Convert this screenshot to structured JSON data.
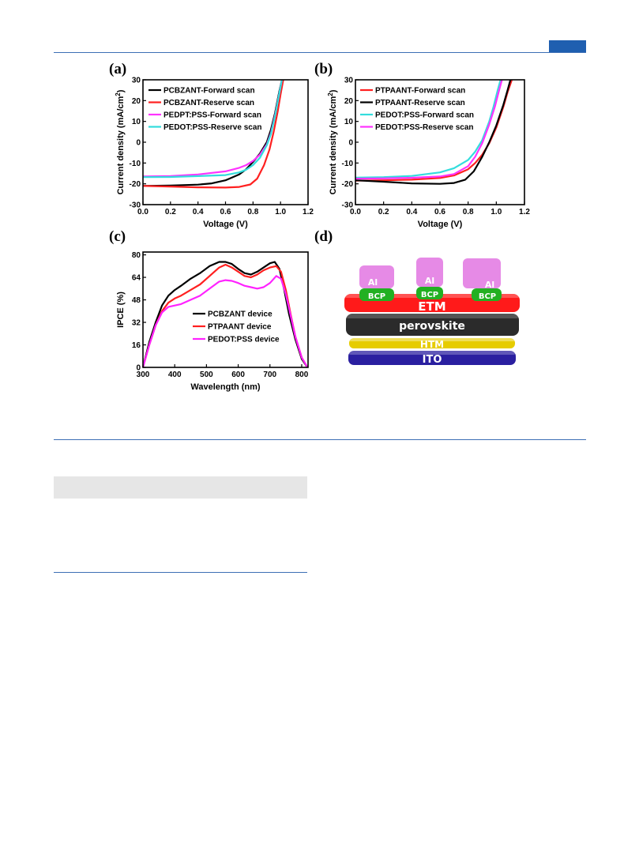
{
  "panel_labels": [
    "(a)",
    "(b)",
    "(c)",
    "(d)"
  ],
  "chart_data": [
    {
      "panel": "(a)",
      "type": "line",
      "xlabel": "Voltage (V)",
      "ylabel": "Current density (mA/cm",
      "ylabel_sup": "2",
      "ylabel_end": ")",
      "xlim": [
        0.0,
        1.2
      ],
      "ylim": [
        -30,
        30
      ],
      "xticks": [
        "0.0",
        "0.2",
        "0.4",
        "0.6",
        "0.8",
        "1.0",
        "1.2"
      ],
      "yticks": [
        "-30",
        "-20",
        "-10",
        "0",
        "10",
        "20",
        "30"
      ],
      "series": [
        {
          "name": "PCBZANT-Forward scan",
          "color": "#000000",
          "x": [
            0.0,
            0.2,
            0.4,
            0.5,
            0.6,
            0.7,
            0.75,
            0.8,
            0.85,
            0.9,
            0.93,
            0.96,
            0.99,
            1.01
          ],
          "y": [
            -21,
            -20.8,
            -20.4,
            -19.8,
            -18.3,
            -15.5,
            -13,
            -9.5,
            -5.5,
            0,
            6,
            14,
            24,
            30
          ]
        },
        {
          "name": "PCBZANT-Reserve scan",
          "color": "#ff2020",
          "x": [
            0.0,
            0.2,
            0.4,
            0.6,
            0.7,
            0.78,
            0.83,
            0.88,
            0.92,
            0.95,
            0.98,
            1.0,
            1.02
          ],
          "y": [
            -21,
            -21.3,
            -21.7,
            -21.8,
            -21.5,
            -20.3,
            -17.5,
            -11,
            -3.5,
            5,
            15,
            23,
            30
          ]
        },
        {
          "name": "PEDPT:PSS-Forward scan",
          "color": "#ff33ff",
          "x": [
            0.0,
            0.2,
            0.4,
            0.6,
            0.7,
            0.75,
            0.8,
            0.85,
            0.9,
            0.93,
            0.96,
            0.99,
            1.01
          ],
          "y": [
            -16.5,
            -16.3,
            -15.5,
            -14,
            -12.3,
            -11,
            -9,
            -6,
            -1,
            4.5,
            13,
            23,
            30
          ]
        },
        {
          "name": "PEDOT:PSS-Reserve scan",
          "color": "#33dddd",
          "x": [
            0.0,
            0.2,
            0.4,
            0.6,
            0.7,
            0.75,
            0.8,
            0.85,
            0.9,
            0.93,
            0.96,
            0.99,
            1.01
          ],
          "y": [
            -16.8,
            -16.7,
            -16.3,
            -15.8,
            -14.5,
            -13.2,
            -11,
            -7.5,
            -1.5,
            4,
            12.5,
            23,
            30
          ]
        }
      ]
    },
    {
      "panel": "(b)",
      "type": "line",
      "xlabel": "Voltage (V)",
      "ylabel": "Current density (mA/cm",
      "ylabel_sup": "2",
      "ylabel_end": ")",
      "xlim": [
        0.0,
        1.2
      ],
      "ylim": [
        -30,
        30
      ],
      "xticks": [
        "0.0",
        "0.2",
        "0.4",
        "0.6",
        "0.8",
        "1.0",
        "1.2"
      ],
      "yticks": [
        "-30",
        "-20",
        "-10",
        "0",
        "10",
        "20",
        "30"
      ],
      "series": [
        {
          "name": "PTPAANT-Forward scan",
          "color": "#ff2020",
          "x": [
            0.0,
            0.2,
            0.4,
            0.6,
            0.7,
            0.8,
            0.85,
            0.9,
            0.95,
            1.0,
            1.05,
            1.08,
            1.11
          ],
          "y": [
            -18.5,
            -18.3,
            -18,
            -17.2,
            -16,
            -13,
            -10,
            -6,
            -0.5,
            7,
            17,
            24,
            30
          ]
        },
        {
          "name": "PTPAANT-Reserve scan",
          "color": "#000000",
          "x": [
            0.0,
            0.2,
            0.4,
            0.6,
            0.7,
            0.78,
            0.84,
            0.9,
            0.95,
            1.0,
            1.05,
            1.08,
            1.1
          ],
          "y": [
            -18.3,
            -19,
            -19.8,
            -20,
            -19.6,
            -18,
            -14,
            -7,
            0,
            8,
            18,
            25,
            30
          ]
        },
        {
          "name": "PEDOT:PSS-Forward scan",
          "color": "#33dddd",
          "x": [
            0.0,
            0.2,
            0.4,
            0.6,
            0.7,
            0.8,
            0.85,
            0.9,
            0.95,
            0.98,
            1.01,
            1.03
          ],
          "y": [
            -17,
            -16.8,
            -16.2,
            -14.5,
            -12.5,
            -8.5,
            -4.5,
            1,
            10,
            17,
            25,
            30
          ]
        },
        {
          "name": "PEDOT:PSS-Reserve scan",
          "color": "#ff33ff",
          "x": [
            0.0,
            0.2,
            0.4,
            0.6,
            0.7,
            0.8,
            0.85,
            0.9,
            0.95,
            0.99,
            1.02,
            1.04
          ],
          "y": [
            -17.5,
            -17.4,
            -17.1,
            -16.5,
            -15.3,
            -11.5,
            -7,
            -0.5,
            8.5,
            17,
            25,
            30
          ]
        }
      ]
    },
    {
      "panel": "(c)",
      "type": "line",
      "xlabel": "Wavelength (nm)",
      "ylabel": "IPCE (%)",
      "xlim": [
        300,
        820
      ],
      "ylim": [
        0,
        82
      ],
      "xticks": [
        "300",
        "400",
        "500",
        "600",
        "700",
        "800"
      ],
      "yticks": [
        "0",
        "16",
        "32",
        "48",
        "64",
        "80"
      ],
      "series": [
        {
          "name": "PCBZANT device",
          "color": "#000000",
          "x": [
            300,
            320,
            340,
            360,
            380,
            400,
            420,
            450,
            480,
            510,
            540,
            560,
            580,
            600,
            620,
            640,
            660,
            680,
            700,
            715,
            730,
            745,
            760,
            780,
            800,
            818
          ],
          "y": [
            0,
            18,
            32,
            44,
            51,
            55,
            58,
            63,
            67,
            72,
            75,
            75,
            73.5,
            70,
            67,
            66,
            68,
            71,
            74,
            75,
            70,
            55,
            38,
            20,
            6,
            0
          ]
        },
        {
          "name": "PTPAANT device",
          "color": "#ff2020",
          "x": [
            300,
            320,
            340,
            360,
            380,
            400,
            420,
            450,
            480,
            510,
            540,
            560,
            580,
            600,
            620,
            640,
            660,
            680,
            700,
            720,
            735,
            750,
            765,
            780,
            800,
            818
          ],
          "y": [
            0,
            16,
            30,
            40,
            46,
            49,
            51,
            55,
            59,
            65,
            71,
            73,
            71,
            68,
            65,
            64,
            66,
            69,
            71,
            72,
            68,
            55,
            38,
            22,
            7,
            0
          ]
        },
        {
          "name": "PEDOT:PSS device",
          "color": "#ff22ff",
          "x": [
            300,
            320,
            340,
            360,
            380,
            400,
            420,
            450,
            480,
            510,
            540,
            560,
            580,
            600,
            620,
            640,
            660,
            680,
            700,
            720,
            735,
            750,
            765,
            780,
            800,
            818
          ],
          "y": [
            0,
            16,
            30,
            39,
            43,
            44,
            45,
            48,
            51,
            56,
            61,
            62,
            61.5,
            60,
            58,
            57,
            56,
            57,
            60,
            65,
            63,
            52,
            37,
            22,
            7,
            0
          ]
        }
      ]
    }
  ],
  "device_diagram": {
    "layers": [
      "ETM",
      "perovskite",
      "HTM",
      "ITO"
    ],
    "electrodes": [
      "Al",
      "Al",
      "Al"
    ],
    "buffers": [
      "BCP",
      "BCP",
      "BCP"
    ],
    "colors": {
      "etm": "#ff1a1a",
      "perovskite": "#2b2b2b",
      "htm": "#e6cc00",
      "ito": "#2a1fa0",
      "al": "#e68ae6",
      "bcp": "#22b022"
    }
  }
}
